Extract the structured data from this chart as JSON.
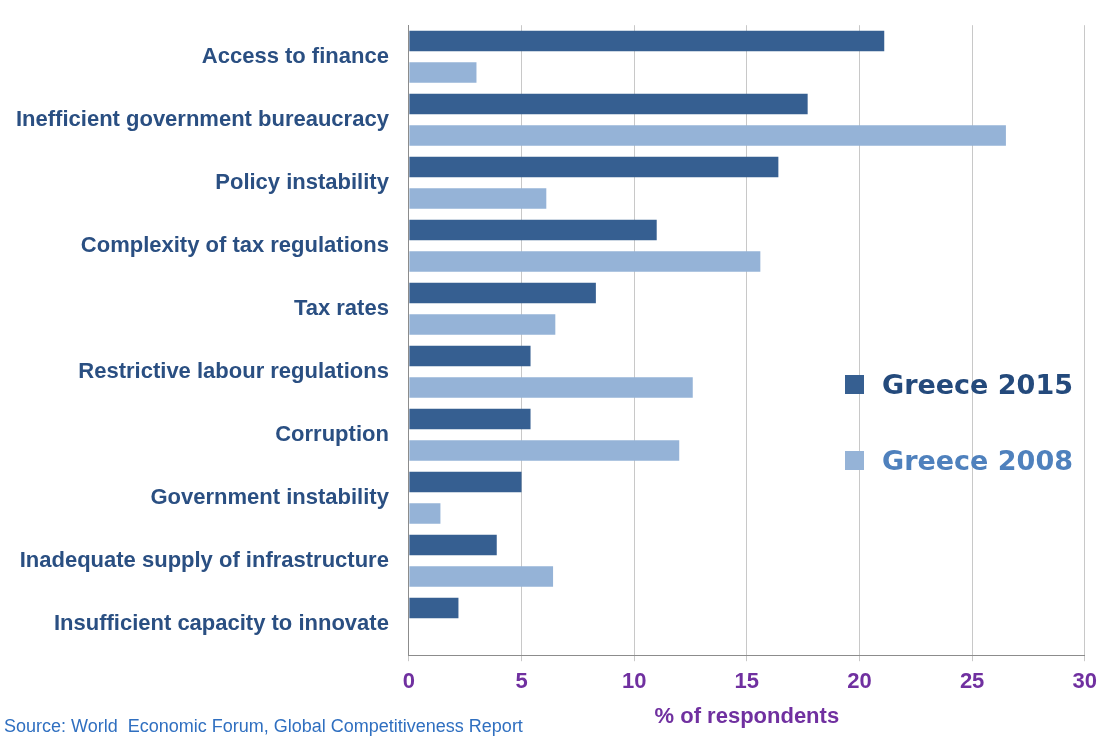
{
  "chart_data": {
    "type": "bar",
    "orientation": "horizontal",
    "xlabel": "% of respondents",
    "categories": [
      "Access to finance",
      "Inefficient government bureaucracy",
      "Policy instability",
      "Complexity of tax regulations",
      "Tax rates",
      "Restrictive labour regulations",
      "Corruption",
      "Government instability",
      "Inadequate supply of infrastructure",
      "Insufficient capacity to innovate"
    ],
    "series": [
      {
        "name": "Greece 2015",
        "color": "#365f91",
        "values": [
          21.1,
          17.7,
          16.4,
          11.0,
          8.3,
          5.4,
          5.4,
          5.0,
          3.9,
          2.2
        ]
      },
      {
        "name": "Greece 2008",
        "color": "#95b3d7",
        "values": [
          3.0,
          26.5,
          6.1,
          15.6,
          6.5,
          12.6,
          12.0,
          1.4,
          6.4,
          null
        ]
      }
    ],
    "xlim": [
      0,
      30
    ],
    "xticks": [
      0,
      5,
      10,
      15,
      20,
      25,
      30
    ],
    "grid": "x",
    "legend": "right",
    "annotations": [
      "Source: World  Economic Forum, Global Competitiveness Report"
    ]
  }
}
